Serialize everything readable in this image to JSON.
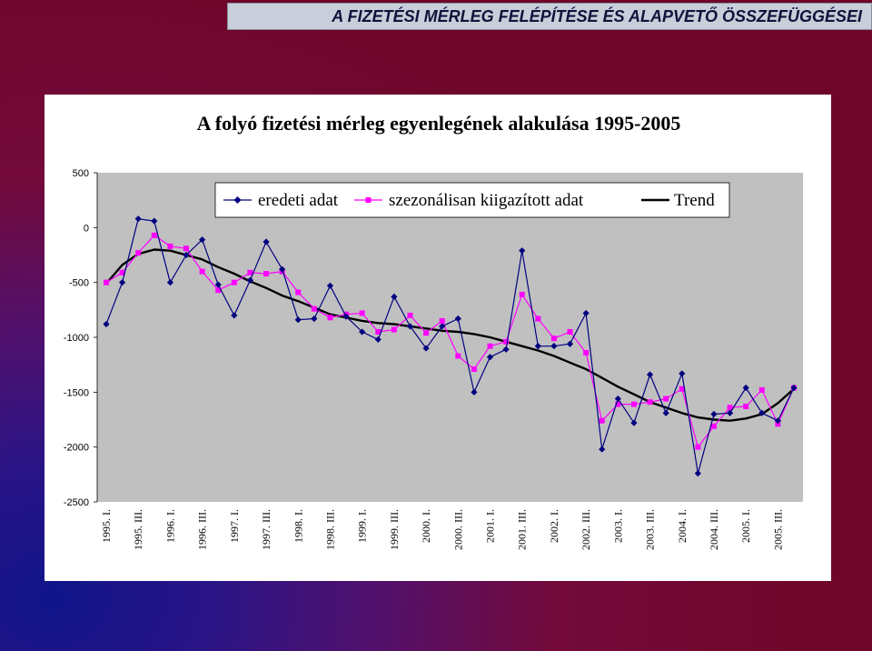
{
  "header": {
    "title": "A FIZETÉSI MÉRLEG FELÉPÍTÉSE ÉS ALAPVETŐ ÖSSZEFÜGGÉSEI"
  },
  "colors": {
    "plot_area": "#c0c0c0",
    "original_series": "#000080",
    "seasonal_series": "#ff00ff",
    "trend": "#000000"
  },
  "chart_data": {
    "type": "line",
    "title": "A folyó fizetési mérleg egyenlegének alakulása 1995-2005",
    "xlabel": "",
    "ylabel": "",
    "ylim": [
      -2500,
      500
    ],
    "yticks": [
      500,
      0,
      -500,
      -1000,
      -1500,
      -2000,
      -2500
    ],
    "grid": false,
    "legend_position": "top",
    "categories": [
      "1995. I.",
      "1995. II.",
      "1995. III.",
      "1995. IV.",
      "1996. I.",
      "1996. II.",
      "1996. III.",
      "1996. IV.",
      "1997. I.",
      "1997. II.",
      "1997. III.",
      "1997. IV.",
      "1998. I.",
      "1998. II.",
      "1998. III.",
      "1998. IV.",
      "1999. I.",
      "1999. II.",
      "1999. III.",
      "1999. IV.",
      "2000. I.",
      "2000. II.",
      "2000. III.",
      "2000. IV.",
      "2001. I.",
      "2001. II.",
      "2001. III.",
      "2001. IV.",
      "2002. I.",
      "2002. II.",
      "2002. III.",
      "2002. IV.",
      "2003. I.",
      "2003. II.",
      "2003. III.",
      "2003. IV.",
      "2004. I.",
      "2004. II.",
      "2004. III.",
      "2004. IV.",
      "2005. I.",
      "2005. II.",
      "2005. III.",
      "2005. IV."
    ],
    "tick_labels": [
      "1995. I.",
      "1995. III.",
      "1996. I.",
      "1996. III.",
      "1997. I.",
      "1997. III.",
      "1998. I.",
      "1998. III.",
      "1999. I.",
      "1999. III.",
      "2000. I.",
      "2000. III.",
      "2001. I.",
      "2001. III.",
      "2002. I.",
      "2002. III.",
      "2003. I.",
      "2003. III.",
      "2004. I.",
      "2004. III.",
      "2005. I.",
      "2005. III."
    ],
    "series": [
      {
        "name": "eredeti adat",
        "marker": "diamond",
        "values": [
          -880,
          -500,
          80,
          60,
          -500,
          -250,
          -110,
          -520,
          -800,
          -480,
          -130,
          -380,
          -840,
          -830,
          -530,
          -810,
          -950,
          -1020,
          -630,
          -900,
          -1100,
          -900,
          -830,
          -1500,
          -1180,
          -1110,
          -210,
          -1080,
          -1080,
          -1060,
          -780,
          -2020,
          -1560,
          -1780,
          -1340,
          -1690,
          -1330,
          -2240,
          -1700,
          -1690,
          -1460,
          -1690,
          -1760,
          -1460
        ]
      },
      {
        "name": "szezonálisan kiigazított adat",
        "marker": "square",
        "values": [
          -500,
          -410,
          -230,
          -70,
          -170,
          -190,
          -400,
          -570,
          -500,
          -410,
          -420,
          -400,
          -590,
          -740,
          -820,
          -790,
          -780,
          -950,
          -930,
          -800,
          -960,
          -850,
          -1170,
          -1290,
          -1080,
          -1040,
          -610,
          -830,
          -1010,
          -950,
          -1140,
          -1760,
          -1610,
          -1610,
          -1590,
          -1560,
          -1470,
          -2000,
          -1810,
          -1640,
          -1630,
          -1480,
          -1790,
          -1460
        ]
      },
      {
        "name": "Trend",
        "marker": "none",
        "values": [
          -510,
          -340,
          -240,
          -200,
          -210,
          -250,
          -290,
          -360,
          -420,
          -490,
          -550,
          -620,
          -670,
          -730,
          -790,
          -820,
          -850,
          -870,
          -880,
          -900,
          -920,
          -940,
          -950,
          -970,
          -1000,
          -1040,
          -1080,
          -1120,
          -1170,
          -1230,
          -1290,
          -1370,
          -1450,
          -1520,
          -1590,
          -1640,
          -1690,
          -1730,
          -1750,
          -1760,
          -1740,
          -1700,
          -1600,
          -1470
        ]
      }
    ]
  }
}
